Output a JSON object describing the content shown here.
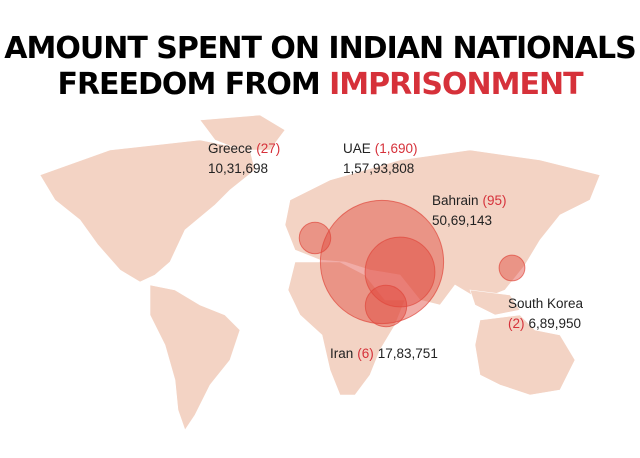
{
  "chart_data": {
    "type": "bubble",
    "title_line1": "AMOUNT SPENT ON INDIAN NATIONALS",
    "title_line2": "FREEDOM FROM",
    "title_highlight": "IMPRISONMENT",
    "categories": [
      "Greece",
      "UAE",
      "Bahrain",
      "Iran",
      "South Korea"
    ],
    "counts": [
      27,
      1690,
      95,
      6,
      2
    ],
    "count_labels": [
      "(27)",
      "(1,690)",
      "(95)",
      "(6)",
      "(2)"
    ],
    "values": [
      1031698,
      15793808,
      5069143,
      1783751,
      689950
    ],
    "value_labels": [
      "10,31,698",
      "1,57,93,808",
      "50,69,143",
      "17,83,751",
      "6,89,950"
    ],
    "color": "#e0473c"
  }
}
